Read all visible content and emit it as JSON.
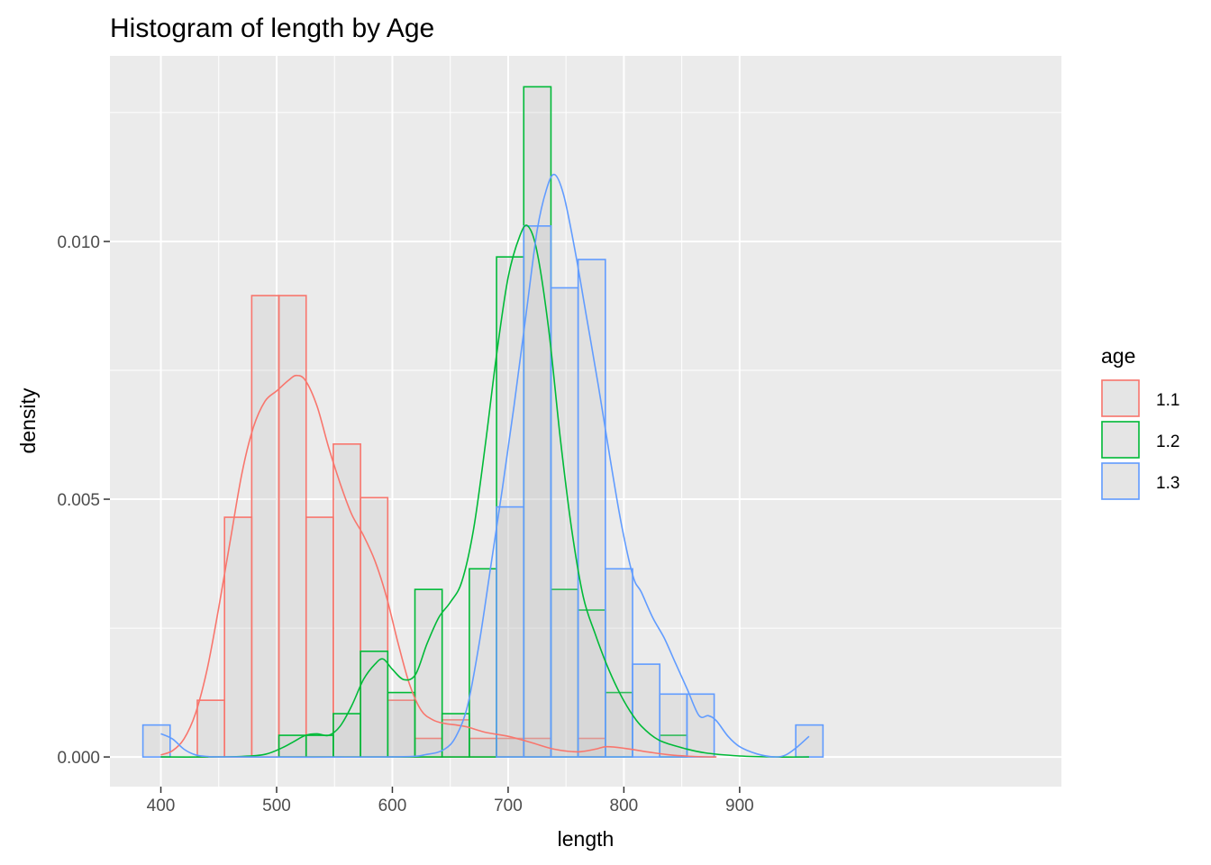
{
  "chart_data": {
    "type": "histogram",
    "title": "Histogram of length by Age",
    "xlabel": "length",
    "ylabel": "density",
    "xlim": [
      356,
      1178
    ],
    "ylim": [
      -0.000575,
      0.0136
    ],
    "x_ticks": [
      400,
      500,
      600,
      700,
      800,
      900
    ],
    "x_tick_labels": [
      "400",
      "500",
      "600",
      "700",
      "800",
      "900"
    ],
    "y_ticks": [
      0.0,
      0.005,
      0.01
    ],
    "y_tick_labels": [
      "0.000",
      "0.005",
      "0.010"
    ],
    "legend_title": "age",
    "legend_position": "right",
    "bar_fill": "#bebebe",
    "series": [
      {
        "name": "1.1",
        "color": "#F8766D",
        "bins": [
          {
            "x0": 431.5,
            "x1": 455,
            "density": 0.0011
          },
          {
            "x0": 455,
            "x1": 478.5,
            "density": 0.00465
          },
          {
            "x0": 478.5,
            "x1": 502,
            "density": 0.00895
          },
          {
            "x0": 502,
            "x1": 525.5,
            "density": 0.00895
          },
          {
            "x0": 525.5,
            "x1": 549,
            "density": 0.00465
          },
          {
            "x0": 549,
            "x1": 572.5,
            "density": 0.00607
          },
          {
            "x0": 572.5,
            "x1": 596,
            "density": 0.00503
          },
          {
            "x0": 596,
            "x1": 619.5,
            "density": 0.0011
          },
          {
            "x0": 619.5,
            "x1": 643,
            "density": 0.00036
          },
          {
            "x0": 643,
            "x1": 666.5,
            "density": 0.00072
          },
          {
            "x0": 666.5,
            "x1": 690,
            "density": 0.00036
          },
          {
            "x0": 690,
            "x1": 713.5,
            "density": 0.00036
          },
          {
            "x0": 713.5,
            "x1": 737,
            "density": 0.00036
          },
          {
            "x0": 760.5,
            "x1": 784,
            "density": 0.00036
          }
        ],
        "kde": [
          [
            400,
            4e-05
          ],
          [
            410,
            0.00012
          ],
          [
            420,
            0.00035
          ],
          [
            430,
            0.00085
          ],
          [
            440,
            0.0017
          ],
          [
            450,
            0.0029
          ],
          [
            460,
            0.0042
          ],
          [
            470,
            0.0055
          ],
          [
            480,
            0.0064
          ],
          [
            490,
            0.0069
          ],
          [
            500,
            0.0071
          ],
          [
            510,
            0.0073
          ],
          [
            517,
            0.0074
          ],
          [
            525,
            0.0073
          ],
          [
            535,
            0.0068
          ],
          [
            545,
            0.006
          ],
          [
            555,
            0.0053
          ],
          [
            565,
            0.0047
          ],
          [
            575,
            0.0043
          ],
          [
            585,
            0.0038
          ],
          [
            595,
            0.0031
          ],
          [
            605,
            0.0022
          ],
          [
            615,
            0.0014
          ],
          [
            625,
            0.0009
          ],
          [
            635,
            0.00072
          ],
          [
            645,
            0.00065
          ],
          [
            655,
            0.00062
          ],
          [
            665,
            0.00058
          ],
          [
            680,
            0.00048
          ],
          [
            700,
            0.0004
          ],
          [
            720,
            0.00028
          ],
          [
            740,
            0.00015
          ],
          [
            760,
            0.0001
          ],
          [
            775,
            0.00015
          ],
          [
            785,
            0.0002
          ],
          [
            800,
            0.00017
          ],
          [
            820,
            0.0001
          ],
          [
            840,
            4e-05
          ],
          [
            860,
            1e-05
          ],
          [
            880,
            0.0
          ]
        ]
      },
      {
        "name": "1.2",
        "color": "#00BA38",
        "bins": [
          {
            "x0": 502,
            "x1": 525.5,
            "density": 0.00042
          },
          {
            "x0": 525.5,
            "x1": 549,
            "density": 0.00042
          },
          {
            "x0": 549,
            "x1": 572.5,
            "density": 0.00084
          },
          {
            "x0": 572.5,
            "x1": 596,
            "density": 0.00205
          },
          {
            "x0": 596,
            "x1": 619.5,
            "density": 0.00125
          },
          {
            "x0": 619.5,
            "x1": 643,
            "density": 0.00325
          },
          {
            "x0": 643,
            "x1": 666.5,
            "density": 0.00084
          },
          {
            "x0": 666.5,
            "x1": 690,
            "density": 0.00365
          },
          {
            "x0": 690,
            "x1": 713.5,
            "density": 0.0097
          },
          {
            "x0": 713.5,
            "x1": 737,
            "density": 0.013
          },
          {
            "x0": 737,
            "x1": 760.5,
            "density": 0.00325
          },
          {
            "x0": 760.5,
            "x1": 784,
            "density": 0.00285
          },
          {
            "x0": 784,
            "x1": 807.5,
            "density": 0.00125
          },
          {
            "x0": 831,
            "x1": 854.5,
            "density": 0.00042
          }
        ],
        "kde": [
          [
            400,
            0.0
          ],
          [
            440,
            0.0
          ],
          [
            470,
            1e-05
          ],
          [
            490,
            5e-05
          ],
          [
            505,
            0.00018
          ],
          [
            515,
            0.0003
          ],
          [
            525,
            0.00042
          ],
          [
            535,
            0.00045
          ],
          [
            545,
            0.00042
          ],
          [
            555,
            0.0006
          ],
          [
            565,
            0.001
          ],
          [
            575,
            0.0015
          ],
          [
            585,
            0.0018
          ],
          [
            592,
            0.0019
          ],
          [
            600,
            0.0017
          ],
          [
            610,
            0.0015
          ],
          [
            620,
            0.0016
          ],
          [
            630,
            0.0022
          ],
          [
            640,
            0.0027
          ],
          [
            650,
            0.003
          ],
          [
            660,
            0.0034
          ],
          [
            670,
            0.0044
          ],
          [
            680,
            0.006
          ],
          [
            690,
            0.0078
          ],
          [
            700,
            0.0093
          ],
          [
            710,
            0.0101
          ],
          [
            717,
            0.0103
          ],
          [
            725,
            0.0098
          ],
          [
            735,
            0.0083
          ],
          [
            745,
            0.0062
          ],
          [
            755,
            0.0044
          ],
          [
            765,
            0.0031
          ],
          [
            775,
            0.0024
          ],
          [
            785,
            0.0018
          ],
          [
            795,
            0.0013
          ],
          [
            805,
            0.0009
          ],
          [
            815,
            0.0006
          ],
          [
            830,
            0.00033
          ],
          [
            850,
            0.00018
          ],
          [
            870,
            8e-05
          ],
          [
            900,
            2e-05
          ],
          [
            930,
            0.0
          ],
          [
            960,
            0.0
          ]
        ]
      },
      {
        "name": "1.3",
        "color": "#619CFF",
        "bins": [
          {
            "x0": 384.5,
            "x1": 408,
            "density": 0.00062
          },
          {
            "x0": 690,
            "x1": 713.5,
            "density": 0.00485
          },
          {
            "x0": 713.5,
            "x1": 737,
            "density": 0.0103
          },
          {
            "x0": 737,
            "x1": 760.5,
            "density": 0.0091
          },
          {
            "x0": 760.5,
            "x1": 784,
            "density": 0.00965
          },
          {
            "x0": 784,
            "x1": 807.5,
            "density": 0.00365
          },
          {
            "x0": 807.5,
            "x1": 831,
            "density": 0.0018
          },
          {
            "x0": 831,
            "x1": 854.5,
            "density": 0.00122
          },
          {
            "x0": 854.5,
            "x1": 878,
            "density": 0.00122
          },
          {
            "x0": 948.5,
            "x1": 972,
            "density": 0.00062
          }
        ],
        "kde": [
          [
            400,
            0.00045
          ],
          [
            410,
            0.00035
          ],
          [
            420,
            0.00015
          ],
          [
            430,
            4e-05
          ],
          [
            440,
            1e-05
          ],
          [
            460,
            0.0
          ],
          [
            600,
            0.0
          ],
          [
            630,
            5e-05
          ],
          [
            645,
            0.00015
          ],
          [
            655,
            0.0004
          ],
          [
            665,
            0.001
          ],
          [
            675,
            0.0022
          ],
          [
            685,
            0.0037
          ],
          [
            695,
            0.0052
          ],
          [
            705,
            0.0068
          ],
          [
            715,
            0.0085
          ],
          [
            725,
            0.0102
          ],
          [
            733,
            0.011
          ],
          [
            740,
            0.0113
          ],
          [
            748,
            0.0109
          ],
          [
            758,
            0.0098
          ],
          [
            768,
            0.0085
          ],
          [
            778,
            0.0072
          ],
          [
            788,
            0.0058
          ],
          [
            798,
            0.0045
          ],
          [
            808,
            0.0035
          ],
          [
            815,
            0.0032
          ],
          [
            825,
            0.0027
          ],
          [
            835,
            0.0023
          ],
          [
            845,
            0.0018
          ],
          [
            855,
            0.0013
          ],
          [
            865,
            0.0008
          ],
          [
            873,
            0.0008
          ],
          [
            880,
            0.0007
          ],
          [
            890,
            0.0004
          ],
          [
            900,
            0.0002
          ],
          [
            915,
            6e-05
          ],
          [
            930,
            0.0
          ],
          [
            940,
            4e-05
          ],
          [
            950,
            0.0002
          ],
          [
            960,
            0.0004
          ]
        ]
      }
    ]
  }
}
